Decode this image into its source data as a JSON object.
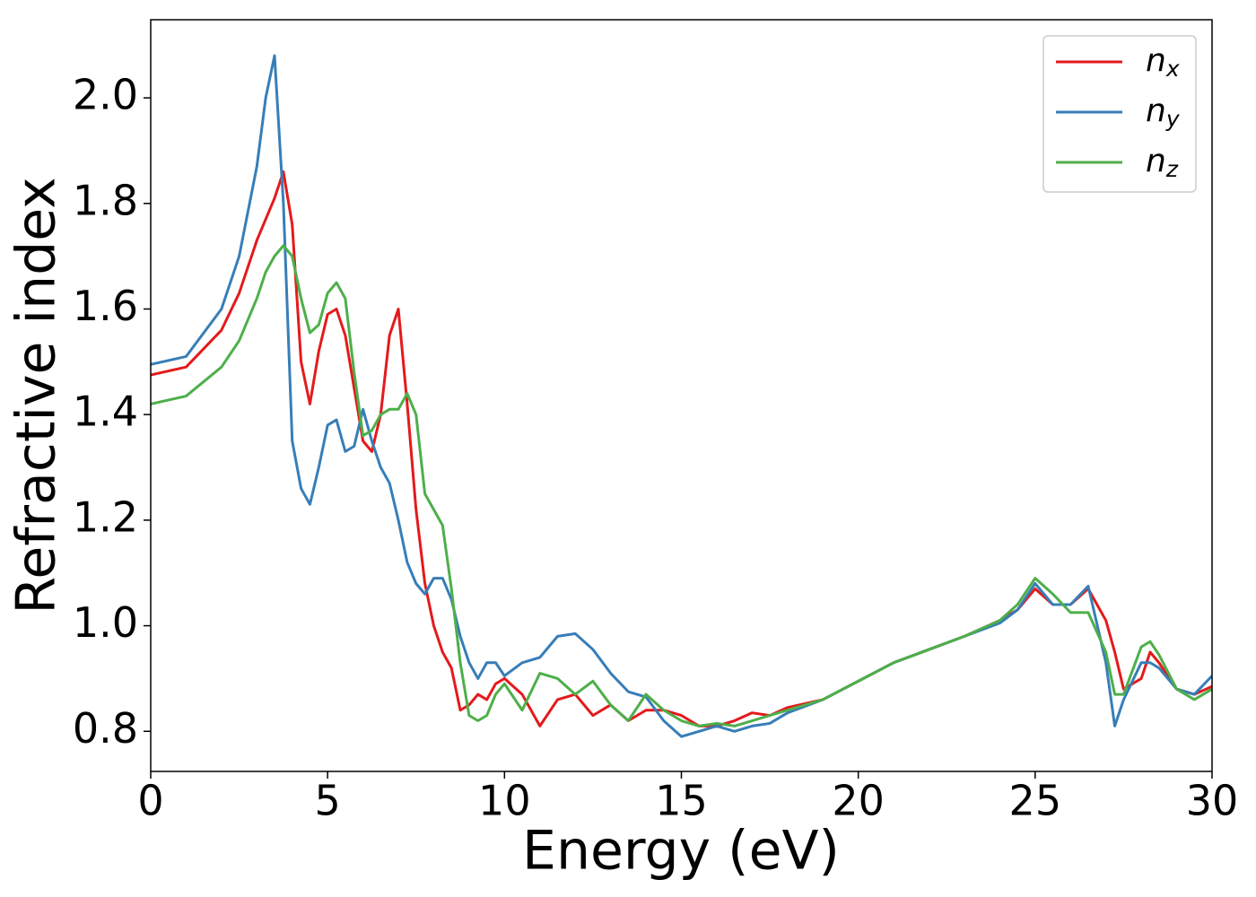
{
  "chart_data": {
    "type": "line",
    "xlabel": "Energy (eV)",
    "ylabel": "Refractive index",
    "x": [
      0,
      1,
      2,
      2.5,
      3,
      3.25,
      3.5,
      3.75,
      4,
      4.25,
      4.5,
      4.75,
      5,
      5.25,
      5.5,
      5.75,
      6,
      6.25,
      6.5,
      6.75,
      7,
      7.25,
      7.5,
      7.75,
      8,
      8.25,
      8.5,
      8.75,
      9,
      9.25,
      9.5,
      9.75,
      10,
      10.5,
      11,
      11.5,
      12,
      12.5,
      13,
      13.5,
      14,
      14.5,
      15,
      15.5,
      16,
      16.5,
      17,
      17.5,
      18,
      19,
      20,
      21,
      22,
      23,
      24,
      24.5,
      25,
      25.5,
      26,
      26.5,
      27,
      27.25,
      27.5,
      28,
      28.25,
      28.5,
      29,
      29.5,
      30
    ],
    "series": [
      {
        "name": "nx",
        "color": "#e41a1c",
        "values": [
          1.475,
          1.49,
          1.56,
          1.63,
          1.73,
          1.77,
          1.81,
          1.86,
          1.76,
          1.5,
          1.42,
          1.52,
          1.59,
          1.6,
          1.55,
          1.45,
          1.35,
          1.33,
          1.4,
          1.55,
          1.6,
          1.42,
          1.22,
          1.08,
          1.0,
          0.95,
          0.92,
          0.84,
          0.85,
          0.87,
          0.86,
          0.89,
          0.9,
          0.87,
          0.81,
          0.86,
          0.87,
          0.83,
          0.85,
          0.82,
          0.84,
          0.84,
          0.83,
          0.81,
          0.81,
          0.82,
          0.835,
          0.83,
          0.845,
          0.86,
          0.895,
          0.93,
          0.955,
          0.98,
          1.01,
          1.03,
          1.07,
          1.04,
          1.04,
          1.07,
          1.01,
          0.95,
          0.88,
          0.9,
          0.95,
          0.93,
          0.88,
          0.87,
          0.885
        ]
      },
      {
        "name": "ny",
        "color": "#377eb8",
        "values": [
          1.495,
          1.51,
          1.6,
          1.7,
          1.87,
          2.0,
          2.08,
          1.8,
          1.35,
          1.26,
          1.23,
          1.3,
          1.38,
          1.39,
          1.33,
          1.34,
          1.41,
          1.35,
          1.3,
          1.27,
          1.2,
          1.12,
          1.08,
          1.06,
          1.09,
          1.09,
          1.05,
          0.98,
          0.93,
          0.9,
          0.93,
          0.93,
          0.905,
          0.93,
          0.94,
          0.98,
          0.985,
          0.955,
          0.91,
          0.875,
          0.865,
          0.82,
          0.79,
          0.8,
          0.81,
          0.8,
          0.81,
          0.815,
          0.835,
          0.86,
          0.895,
          0.93,
          0.955,
          0.98,
          1.005,
          1.03,
          1.08,
          1.04,
          1.04,
          1.075,
          0.93,
          0.81,
          0.86,
          0.93,
          0.93,
          0.92,
          0.88,
          0.87,
          0.905
        ]
      },
      {
        "name": "nz",
        "color": "#4daf4a",
        "values": [
          1.42,
          1.435,
          1.49,
          1.54,
          1.62,
          1.67,
          1.7,
          1.72,
          1.7,
          1.62,
          1.555,
          1.57,
          1.63,
          1.65,
          1.62,
          1.48,
          1.36,
          1.37,
          1.4,
          1.41,
          1.41,
          1.44,
          1.4,
          1.25,
          1.22,
          1.19,
          1.07,
          0.93,
          0.83,
          0.82,
          0.83,
          0.87,
          0.89,
          0.84,
          0.91,
          0.9,
          0.87,
          0.895,
          0.85,
          0.82,
          0.87,
          0.84,
          0.82,
          0.81,
          0.815,
          0.81,
          0.82,
          0.83,
          0.84,
          0.86,
          0.895,
          0.93,
          0.955,
          0.98,
          1.01,
          1.04,
          1.09,
          1.06,
          1.025,
          1.025,
          0.95,
          0.87,
          0.87,
          0.96,
          0.97,
          0.945,
          0.88,
          0.86,
          0.88
        ]
      }
    ],
    "xlim": [
      0,
      30
    ],
    "xticks": [
      0,
      5,
      10,
      15,
      20,
      25,
      30
    ],
    "ylim": [
      0.724,
      2.148
    ],
    "yticks": [
      0.8,
      {
        "value": 1.0,
        "label": "1.0"
      },
      1.2,
      1.4,
      1.6,
      1.8,
      {
        "value": 2.0,
        "label": "2.0"
      }
    ],
    "legend": "upper right",
    "grid": false
  }
}
